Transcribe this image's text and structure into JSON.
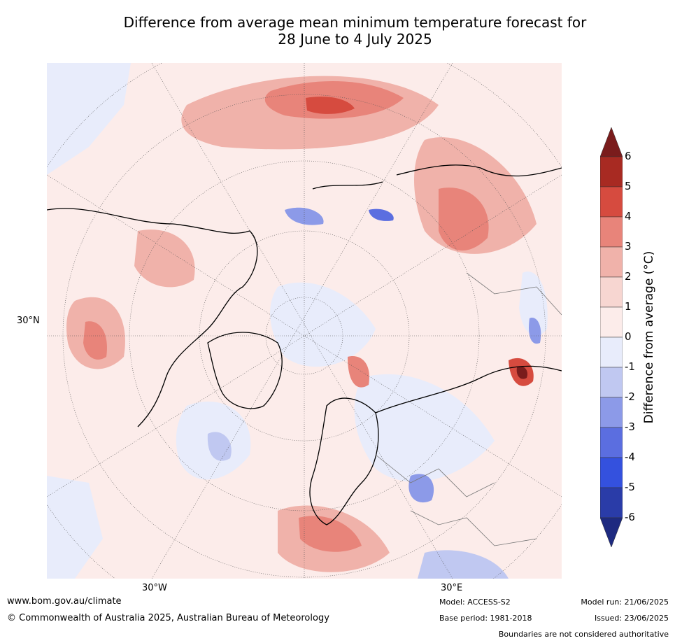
{
  "title": {
    "line1": "Difference from average mean minimum temperature forecast for",
    "line2": "28 June to 4 July 2025"
  },
  "map": {
    "lat_label": "30°N",
    "lon_labels": [
      "30°W",
      "30°E"
    ]
  },
  "colorbar": {
    "title": "Difference from average (°C)",
    "ticks": [
      "6",
      "5",
      "4",
      "3",
      "2",
      "1",
      "0",
      "-1",
      "-2",
      "-3",
      "-4",
      "-5",
      "-6"
    ],
    "colors": [
      "#7a1c1c",
      "#a82a22",
      "#d64b3f",
      "#e8847a",
      "#f0b2aa",
      "#f7d6d1",
      "#fcecea",
      "#e8ecfb",
      "#c0c8f1",
      "#8c9ae8",
      "#5b6ee0",
      "#3451de",
      "#2a3ca8",
      "#1e2a80"
    ]
  },
  "footer": {
    "url": "www.bom.gov.au/climate",
    "copyright": "© Commonwealth of Australia 2025, Australian Bureau of Meteorology",
    "model": "Model: ACCESS-S2",
    "base_period": "Base period: 1981-2018",
    "model_run": "Model run: 21/06/2025",
    "issued": "Issued: 23/06/2025",
    "boundaries": "Boundaries are not considered authoritative"
  }
}
